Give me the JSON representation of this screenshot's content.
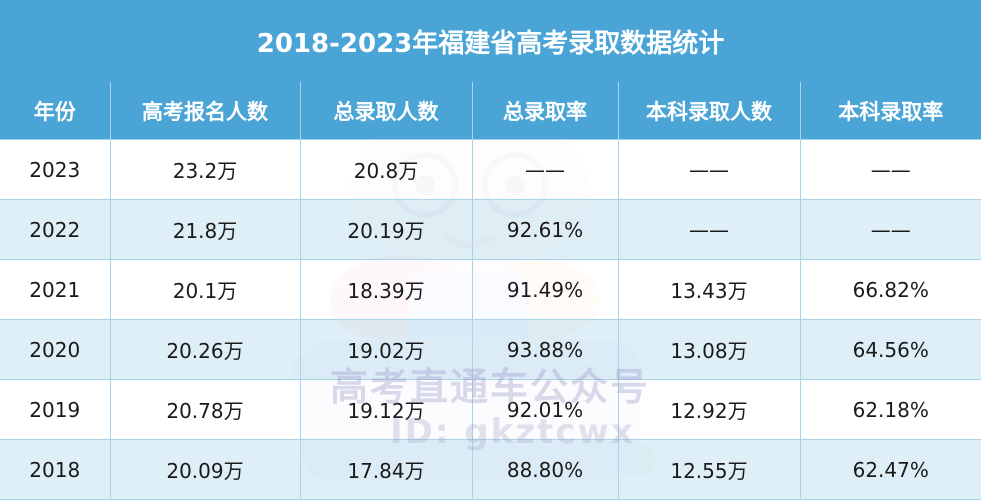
{
  "title": "2018-2023年福建省高考录取数据统计",
  "headers": [
    "年份",
    "高考报名人数",
    "总录取人数",
    "总录取率",
    "本科录取人数",
    "本科录取率"
  ],
  "rows": [
    [
      "2023",
      "23.2万",
      "20.8万",
      "——",
      "——",
      "——"
    ],
    [
      "2022",
      "21.8万",
      "20.19万",
      "92.61%",
      "——",
      "——"
    ],
    [
      "2021",
      "20.1万",
      "18.39万",
      "91.49%",
      "13.43万",
      "66.82%"
    ],
    [
      "2020",
      "20.26万",
      "19.02万",
      "93.88%",
      "13.08万",
      "64.56%"
    ],
    [
      "2019",
      "20.78万",
      "19.12万",
      "92.01%",
      "12.92万",
      "62.18%"
    ],
    [
      "2018",
      "20.09万",
      "17.84万",
      "88.80%",
      "12.55万",
      "62.47%"
    ]
  ],
  "watermark": {
    "line1": "高考直通车公众号",
    "line2": "ID: gkztcwx",
    "badge": "高"
  },
  "colors": {
    "header_bg": "#4aa5d6",
    "row_alt_bg": "#daecf6",
    "border": "#a9d3ea"
  }
}
